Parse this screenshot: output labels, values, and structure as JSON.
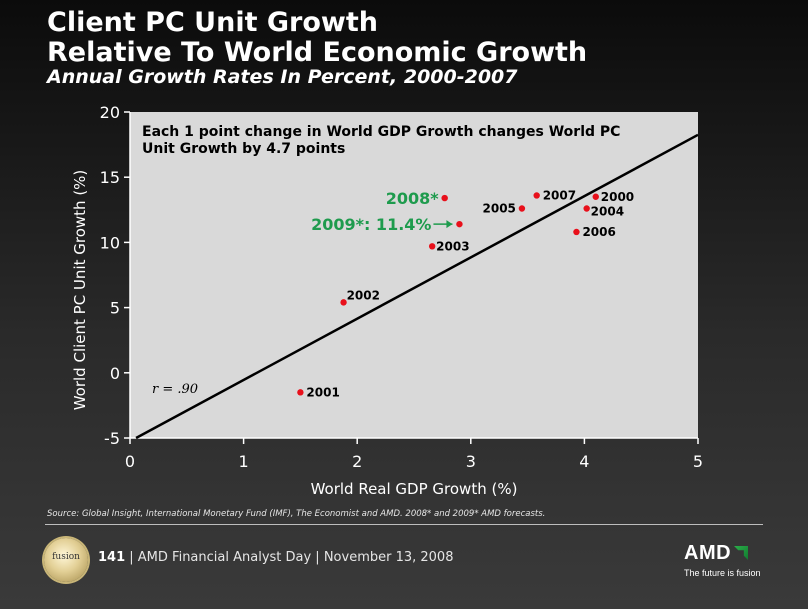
{
  "header": {
    "title_line1": "Client PC Unit Growth",
    "title_line2": "Relative To World Economic Growth",
    "subtitle": "Annual Growth Rates In Percent, 2000-2007"
  },
  "chart_data": {
    "type": "scatter",
    "xlabel": "World Real GDP Growth (%)",
    "ylabel": "World Client PC Unit Growth   (%)",
    "xlim": [
      0,
      5
    ],
    "ylim": [
      -5,
      20
    ],
    "x_ticks": [
      "0",
      "1",
      "2",
      "3",
      "4",
      "5"
    ],
    "y_ticks": [
      "20",
      "15",
      "10",
      "5",
      "0",
      "-5"
    ],
    "grid": false,
    "points": [
      {
        "label": "2000",
        "x": 4.1,
        "y": 13.5
      },
      {
        "label": "2001",
        "x": 1.5,
        "y": -1.5
      },
      {
        "label": "2002",
        "x": 1.88,
        "y": 5.4
      },
      {
        "label": "2003",
        "x": 2.66,
        "y": 9.7
      },
      {
        "label": "2004",
        "x": 4.02,
        "y": 12.6
      },
      {
        "label": "2005",
        "x": 3.45,
        "y": 12.6
      },
      {
        "label": "2006",
        "x": 3.93,
        "y": 10.8
      },
      {
        "label": "2007",
        "x": 3.58,
        "y": 13.6
      },
      {
        "label": "2008*",
        "x": 2.77,
        "y": 13.4
      },
      {
        "label": "2009*: 11.4%",
        "x": 2.9,
        "y": 11.4
      }
    ],
    "trendline": {
      "x": [
        0,
        5
      ],
      "y": [
        -5.25,
        18.25
      ]
    },
    "annotation": "Each 1 point change in World GDP Growth changes World PC Unit Growth by 4.7 points",
    "annotation_line1": "Each 1 point change in World GDP Growth changes World PC",
    "annotation_line2": "Unit Growth by 4.7 points",
    "r_label": "r = .90",
    "colors": {
      "point": "#e8101b",
      "forecast_label": "#1e9b4d",
      "trendline": "#000000",
      "plot_bg": "#d9d9d9"
    }
  },
  "footer": {
    "source": "Source: Global Insight, International Monetary Fund (IMF), The Economist and  AMD.  2008* and 2009* AMD forecasts.",
    "page_number": "141",
    "event_text": "| AMD Financial Analyst Day | November 13, 2008",
    "fusion_logo_text": "fusion",
    "amd_logo": "AMD",
    "tagline": "The future is fusion"
  }
}
